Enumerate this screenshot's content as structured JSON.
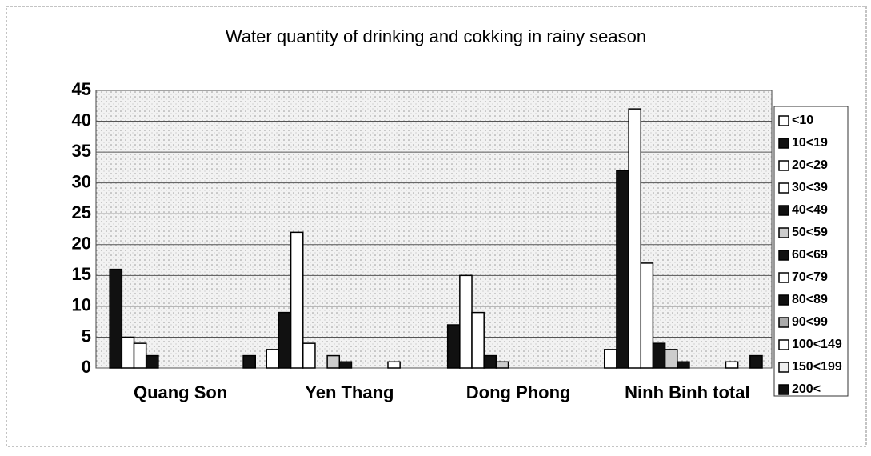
{
  "chart_data": {
    "type": "bar",
    "title": "Water quantity of drinking and cokking in rainy season",
    "categories": [
      "Quang Son",
      "Yen Thang",
      "Dong Phong",
      "Ninh Binh total"
    ],
    "ylim": [
      0,
      45
    ],
    "yticks": [
      0,
      5,
      10,
      15,
      20,
      25,
      30,
      35,
      40,
      45
    ],
    "grid": true,
    "series": [
      {
        "name": "<10",
        "color": "#ffffff",
        "values": [
          0,
          3,
          0,
          3
        ]
      },
      {
        "name": "10<19",
        "color": "#111111",
        "values": [
          16,
          9,
          7,
          32
        ]
      },
      {
        "name": "20<29",
        "color": "#ffffff",
        "values": [
          5,
          22,
          15,
          42
        ]
      },
      {
        "name": "30<39",
        "color": "#ffffff",
        "values": [
          4,
          4,
          9,
          17
        ]
      },
      {
        "name": "40<49",
        "color": "#111111",
        "values": [
          2,
          0,
          2,
          4
        ]
      },
      {
        "name": "50<59",
        "color": "#cccccc",
        "values": [
          0,
          2,
          1,
          3
        ]
      },
      {
        "name": "60<69",
        "color": "#111111",
        "values": [
          0,
          1,
          0,
          1
        ]
      },
      {
        "name": "70<79",
        "color": "#ffffff",
        "values": [
          0,
          0,
          0,
          0
        ]
      },
      {
        "name": "80<89",
        "color": "#111111",
        "values": [
          0,
          0,
          0,
          0
        ]
      },
      {
        "name": "90<99",
        "color": "#aaaaaa",
        "values": [
          0,
          0,
          0,
          0
        ]
      },
      {
        "name": "100<149",
        "color": "#ffffff",
        "values": [
          0,
          1,
          0,
          1
        ]
      },
      {
        "name": "150<199",
        "color": "#eeeeee",
        "values": [
          0,
          0,
          0,
          0
        ]
      },
      {
        "name": "200<",
        "color": "#111111",
        "values": [
          2,
          0,
          0,
          2
        ]
      }
    ]
  }
}
